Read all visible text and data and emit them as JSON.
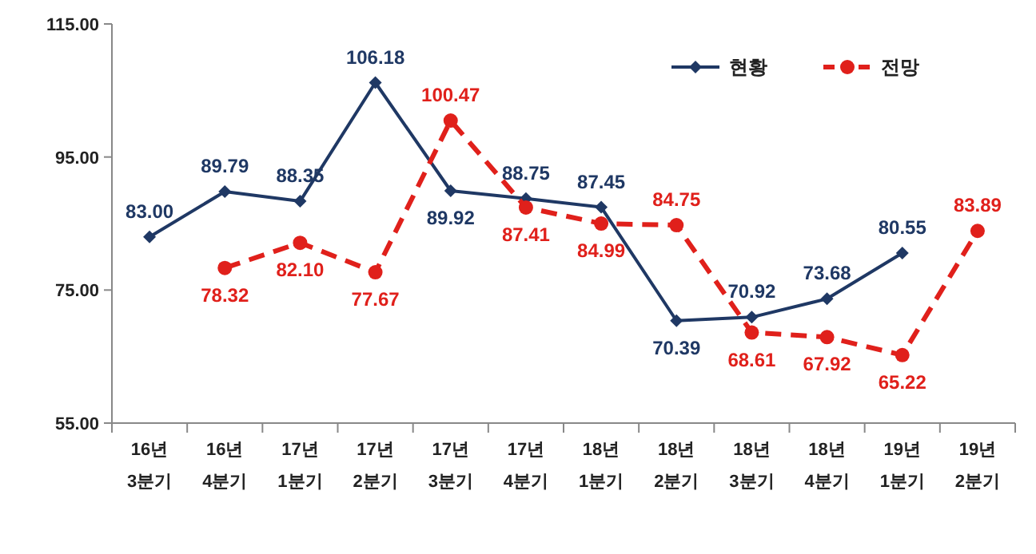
{
  "chart_data": {
    "type": "line",
    "categories": [
      "16년\n3분기",
      "16년\n4분기",
      "17년\n1분기",
      "17년\n2분기",
      "17년\n3분기",
      "17년\n4분기",
      "18년\n1분기",
      "18년\n2분기",
      "18년\n3분기",
      "18년\n4분기",
      "19년\n1분기",
      "19년\n2분기"
    ],
    "series": [
      {
        "name": "현황",
        "color": "#1f3864",
        "marker": "diamond",
        "line_style": "solid",
        "values": [
          83.0,
          89.79,
          88.35,
          106.18,
          89.92,
          88.75,
          87.45,
          70.39,
          70.92,
          73.68,
          80.55,
          null
        ],
        "value_labels": [
          "83.00",
          "89.79",
          "88.35",
          "106.18",
          "89.92",
          "88.75",
          "87.45",
          "70.39",
          "70.92",
          "73.68",
          "80.55",
          null
        ]
      },
      {
        "name": "전망",
        "color": "#e0201b",
        "marker": "circle",
        "line_style": "dashed",
        "values": [
          null,
          78.32,
          82.1,
          77.67,
          100.47,
          87.41,
          84.99,
          84.75,
          68.61,
          67.92,
          65.22,
          83.89
        ],
        "value_labels": [
          null,
          "78.32",
          "82.10",
          "77.67",
          "100.47",
          "87.41",
          "84.99",
          "84.75",
          "68.61",
          "67.92",
          "65.22",
          "83.89"
        ]
      }
    ],
    "ylim": [
      55,
      115
    ],
    "yticks": [
      {
        "value": 55,
        "label": "55.00"
      },
      {
        "value": 75,
        "label": "75.00"
      },
      {
        "value": 95,
        "label": "95.00"
      },
      {
        "value": 115,
        "label": "115.00"
      }
    ],
    "grid": false,
    "legend": "top right"
  }
}
